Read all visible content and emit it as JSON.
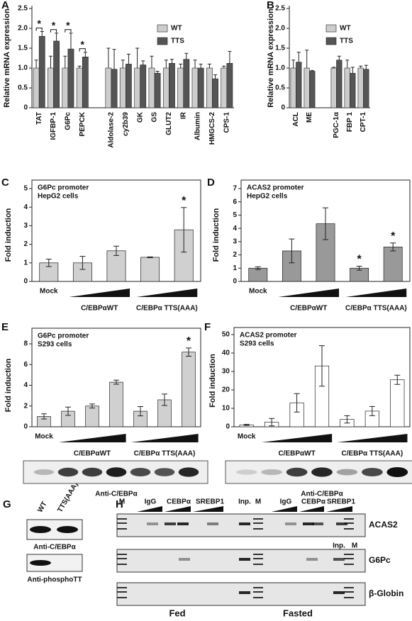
{
  "chart_data": [
    {
      "panel": "A",
      "type": "bar",
      "y_label": "Relative mRNA expression",
      "categories": [
        "TAT",
        "IGFBP-1",
        "G6Pc",
        "PEPCK",
        null,
        "Aldolase-2",
        "cy2b39",
        "GK",
        "GS",
        "GLUT2",
        "IR",
        "Albumin",
        "HMGCS-2",
        "CPS-1"
      ],
      "series": [
        {
          "name": "WT",
          "color": "#cccccc",
          "values": [
            1,
            1,
            1,
            1,
            null,
            1,
            1,
            1,
            1,
            1,
            1,
            1,
            1,
            1
          ],
          "errors": [
            0.2,
            0.3,
            0.3,
            0.05,
            null,
            0.5,
            0.2,
            0.5,
            0.3,
            0.2,
            0.1,
            0.2,
            0.1,
            0.05
          ]
        },
        {
          "name": "TTS",
          "color": "#555555",
          "values": [
            1.8,
            1.68,
            1.48,
            1.28,
            null,
            0.97,
            1.1,
            1.08,
            0.87,
            1.12,
            1.22,
            1.0,
            0.73,
            1.12
          ],
          "errors": [
            0.12,
            0.2,
            0.4,
            0.12,
            null,
            0.5,
            0.25,
            0.1,
            0.05,
            0.1,
            0.15,
            0.1,
            0.1,
            0.3
          ]
        }
      ],
      "ylim": [
        0,
        2.5
      ],
      "yticks": [
        0,
        0.5,
        {
          "value": 1,
          "label": "1.0"
        },
        1.5,
        {
          "value": 2,
          "label": "2.0"
        },
        2.5
      ],
      "annotations": [
        "*",
        "*",
        "*",
        "*"
      ]
    },
    {
      "panel": "B",
      "type": "bar",
      "y_label": "Relative mRNA expression",
      "categories": [
        "ACL",
        "ME",
        null,
        "PGC-1α",
        "FBP 1",
        "CPT-1"
      ],
      "series": [
        {
          "name": "WT",
          "color": "#cccccc",
          "values": [
            1,
            1,
            null,
            1,
            1,
            1
          ],
          "errors": [
            0.2,
            0.45,
            null,
            0.02,
            0.2,
            0.05
          ]
        },
        {
          "name": "TTS",
          "color": "#555555",
          "values": [
            1.15,
            0.92,
            null,
            1.2,
            0.87,
            0.97
          ],
          "errors": [
            0.25,
            0.02,
            null,
            0.1,
            0.15,
            0.1
          ]
        }
      ],
      "ylim": [
        0,
        2.5
      ],
      "yticks": [
        0,
        0.5,
        {
          "value": 1,
          "label": "1.0"
        },
        1.5,
        {
          "value": 2,
          "label": "2.0"
        },
        2.5
      ]
    },
    {
      "panel": "C",
      "type": "bar",
      "title": "G6Pc promoter",
      "subtitle": "HepG2 cells",
      "y_label": "Fold induction",
      "categories": [
        "Mock",
        null,
        null,
        null,
        null
      ],
      "group_labels": [
        "C/EBPαWT",
        "C/EBPα TTS(AAA)"
      ],
      "values": [
        1.0,
        1.0,
        1.65,
        1.3,
        2.78
      ],
      "errors": [
        0.2,
        0.35,
        0.25,
        0.02,
        1.2
      ],
      "color": "#d0d0d0",
      "ylim": [
        0,
        5
      ],
      "yticks": [
        0,
        1,
        2,
        3,
        4,
        5
      ],
      "annotations": [
        "*"
      ]
    },
    {
      "panel": "D",
      "type": "bar",
      "title": "ACAS2 promoter",
      "subtitle": "HepG2 cells",
      "y_label": "Fold induction",
      "categories": [
        "Mock",
        null,
        null,
        null,
        null
      ],
      "group_labels": [
        "C/EBPαWT",
        "C/EBPα TTS(AAA)"
      ],
      "values": [
        1.0,
        2.3,
        4.35,
        1.0,
        2.6
      ],
      "errors": [
        0.1,
        0.9,
        1.2,
        0.15,
        0.3
      ],
      "color": "#999999",
      "ylim": [
        0,
        7
      ],
      "yticks": [
        0,
        1,
        2,
        3,
        4,
        5,
        6,
        7
      ],
      "annotations": [
        "*",
        "*"
      ]
    },
    {
      "panel": "E",
      "type": "bar",
      "title": "G6Pc promoter",
      "subtitle": "S293 cells",
      "y_label": "Fold induction",
      "categories": [
        "Mock",
        null,
        null,
        null,
        null,
        null,
        null
      ],
      "group_labels": [
        "C/EBPαWT",
        "C/EBPα TTS(AAA)"
      ],
      "values": [
        1.0,
        1.5,
        2.0,
        4.3,
        1.5,
        2.6,
        7.2
      ],
      "errors": [
        0.25,
        0.4,
        0.2,
        0.2,
        0.45,
        0.55,
        0.4
      ],
      "color": "#d0d0d0",
      "ylim": [
        0,
        8
      ],
      "yticks": [
        0,
        2,
        4,
        6,
        8
      ],
      "annotations": [
        "*"
      ],
      "blot_label": "Anti-C/EBPα"
    },
    {
      "panel": "F",
      "type": "bar",
      "title": "ACAS2 promoter",
      "subtitle": "S293 cells",
      "y_label": "Fold induction",
      "categories": [
        "Mock",
        null,
        null,
        null,
        null,
        null,
        null
      ],
      "group_labels": [
        "C/EBPαWT",
        "C/EBPα TTS(AAA)"
      ],
      "values": [
        1,
        2.5,
        13,
        33,
        4,
        8.5,
        25.5
      ],
      "errors": [
        0.3,
        2,
        5,
        11,
        2,
        2.5,
        2.5
      ],
      "color": "#ffffff",
      "ylim": [
        0,
        50
      ],
      "yticks": [
        0,
        10,
        20,
        30,
        40,
        50
      ],
      "blot_label": "Anti-C/EBPα"
    }
  ],
  "panel_G": {
    "letter": "G",
    "lanes": [
      "WT",
      "TTS(AAA)"
    ],
    "rows": [
      "Anti-C/EBPα",
      "Anti-phosphoTT"
    ]
  },
  "panel_H": {
    "letter": "H",
    "lane_labels": [
      "M",
      "IgG",
      "CEBPα",
      "SREBP1",
      "Inp.",
      "M",
      "IgG",
      "CEBPα",
      "SREBP1",
      "Inp.",
      "M"
    ],
    "rows": [
      "ACAS2",
      "G6Pc",
      "β-Globin"
    ],
    "conditions": [
      "Fed",
      "Fasted"
    ]
  }
}
